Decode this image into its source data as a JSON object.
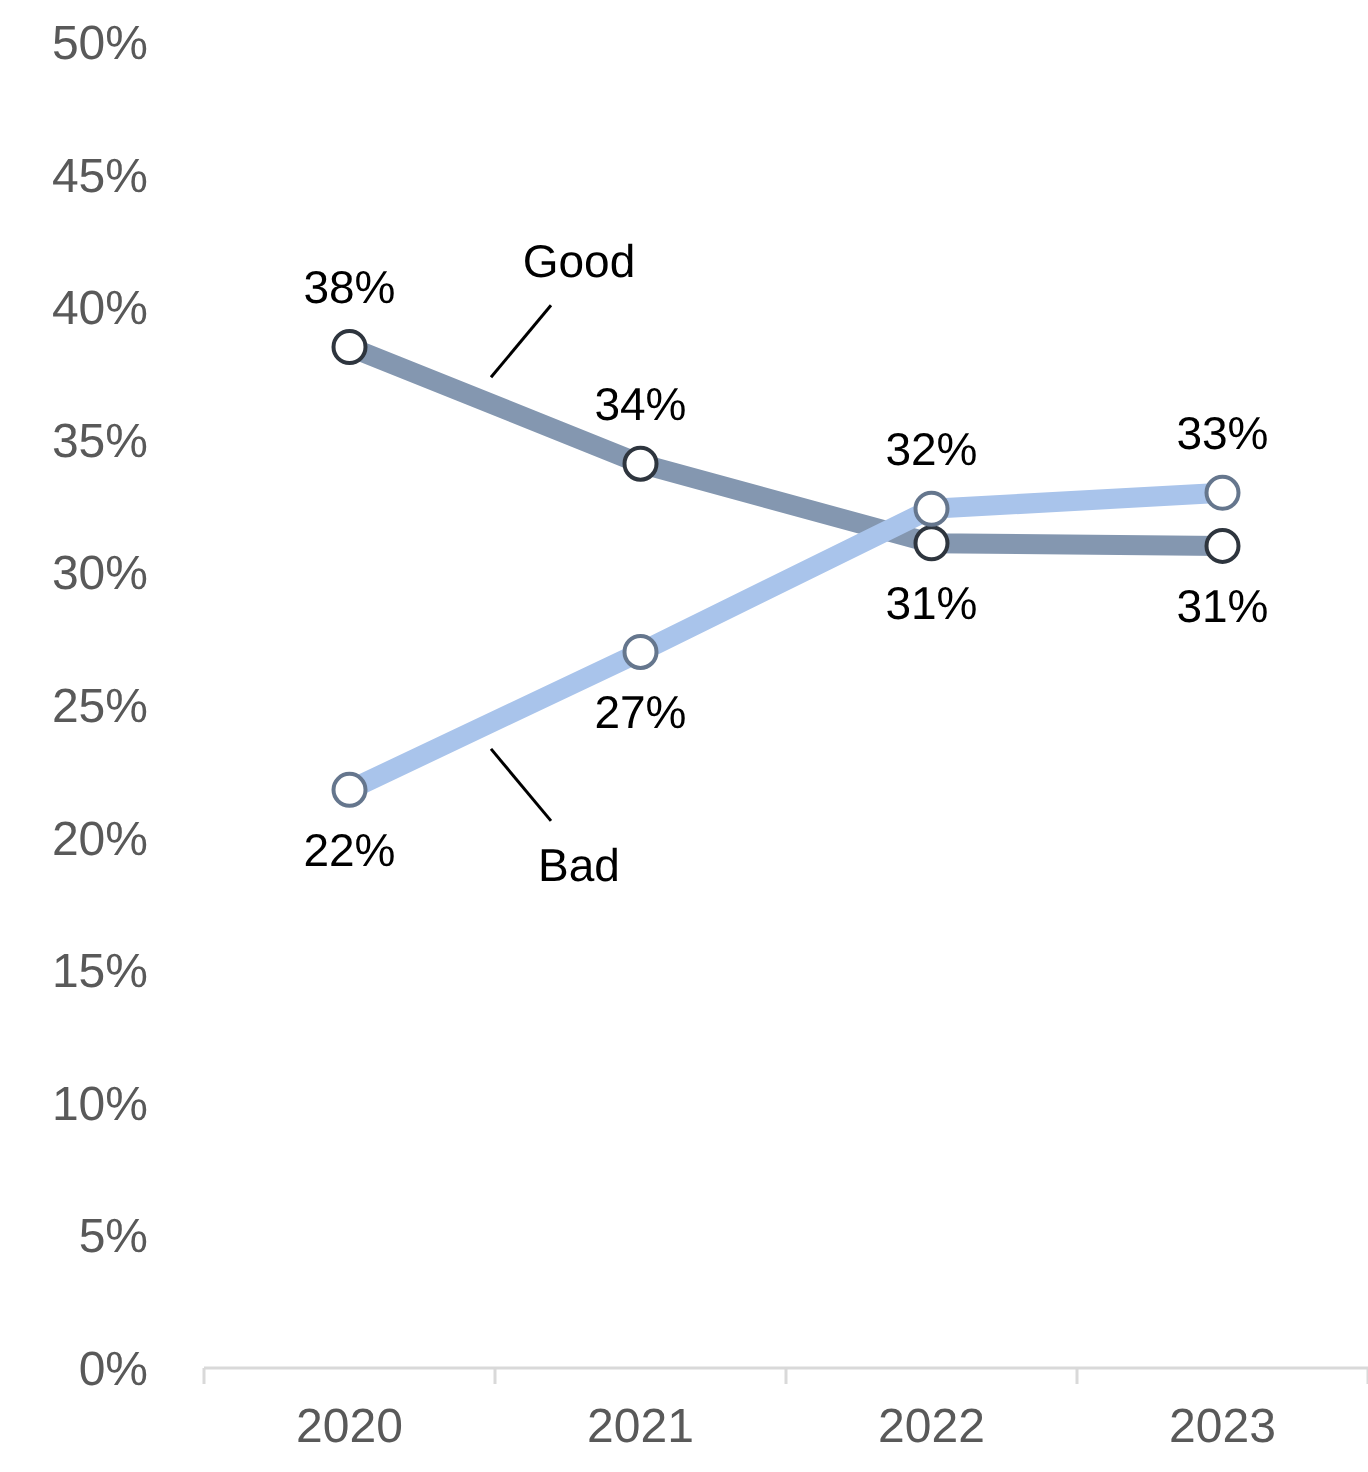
{
  "chart_data": {
    "type": "line",
    "categories": [
      "2020",
      "2021",
      "2022",
      "2023"
    ],
    "series": [
      {
        "name": "Good",
        "color": "#8497b0",
        "values": [
          38.5,
          34.1,
          31.1,
          31.0
        ],
        "value_labels": [
          "38%",
          "34%",
          "31%",
          "31%"
        ]
      },
      {
        "name": "Bad",
        "color": "#a9c4eb",
        "values": [
          21.8,
          27.0,
          32.4,
          33.0
        ],
        "value_labels": [
          "22%",
          "27%",
          "32%",
          "33%"
        ]
      }
    ],
    "ylim": [
      0,
      50
    ],
    "yticks": [
      {
        "value": 0,
        "label": "0%"
      },
      {
        "value": 5,
        "label": "5%"
      },
      {
        "value": 10,
        "label": "10%"
      },
      {
        "value": 15,
        "label": "15%"
      },
      {
        "value": 20,
        "label": "20%"
      },
      {
        "value": 25,
        "label": "25%"
      },
      {
        "value": 30,
        "label": "30%"
      },
      {
        "value": 35,
        "label": "35%"
      },
      {
        "value": 40,
        "label": "40%"
      },
      {
        "value": 45,
        "label": "45%"
      },
      {
        "value": 50,
        "label": "50%"
      }
    ],
    "grid": false,
    "legend": false,
    "marker": "circle",
    "line_style": "solid"
  }
}
